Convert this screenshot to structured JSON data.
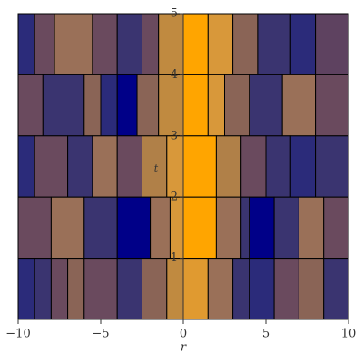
{
  "chart_data": {
    "type": "contour",
    "x_label": "r",
    "y_label": "t",
    "xlim": [
      -10,
      10
    ],
    "ylim": [
      0,
      5
    ],
    "xticks": [
      {
        "value": -10,
        "label": "−10"
      },
      {
        "value": -5,
        "label": "−5"
      },
      0,
      5,
      10
    ],
    "yticks": [
      1,
      2,
      3,
      4,
      5
    ],
    "bands": [
      {
        "t": [
          4,
          5
        ],
        "cells": [
          [
            -10,
            -9,
            "#2b2b7a"
          ],
          [
            -9,
            -7.8,
            "#6a4a5e"
          ],
          [
            -7.8,
            -5.5,
            "#9a7058"
          ],
          [
            -5.5,
            -4,
            "#6a4a5e"
          ],
          [
            -4,
            -2.5,
            "#3a3470"
          ],
          [
            -2.5,
            -1.5,
            "#6a4a5e"
          ],
          [
            -1.5,
            0,
            "#c08a40"
          ],
          [
            0,
            1.5,
            "#ffa500"
          ],
          [
            1.5,
            3,
            "#d8983a"
          ],
          [
            3,
            4.5,
            "#8a6456"
          ],
          [
            4.5,
            6.5,
            "#3a3470"
          ],
          [
            6.5,
            8,
            "#2b2b7a"
          ],
          [
            8,
            10,
            "#5e4260"
          ]
        ]
      },
      {
        "t": [
          3,
          4
        ],
        "cells": [
          [
            -10,
            -8.5,
            "#6a4a5e"
          ],
          [
            -8.5,
            -6,
            "#3a3470"
          ],
          [
            -6,
            -5,
            "#8a6456"
          ],
          [
            -5,
            -4,
            "#2b2b7a"
          ],
          [
            -4,
            -2.8,
            "#000088"
          ],
          [
            -2.8,
            -1.5,
            "#8a6456"
          ],
          [
            -1.5,
            0,
            "#c08a40"
          ],
          [
            0,
            1.5,
            "#ffa500"
          ],
          [
            1.5,
            2.5,
            "#d8983a"
          ],
          [
            2.5,
            4,
            "#8a6456"
          ],
          [
            4,
            6,
            "#3a3470"
          ],
          [
            6,
            8,
            "#9a7058"
          ],
          [
            8,
            10,
            "#6a4a5e"
          ]
        ]
      },
      {
        "t": [
          2,
          3
        ],
        "cells": [
          [
            -10,
            -9,
            "#2b2b7a"
          ],
          [
            -9,
            -7,
            "#6a4a5e"
          ],
          [
            -7,
            -5.5,
            "#3a3470"
          ],
          [
            -5.5,
            -4,
            "#9a7058"
          ],
          [
            -4,
            -2.5,
            "#6a4a5e"
          ],
          [
            -2.5,
            -1,
            "#b08048"
          ],
          [
            -1,
            0,
            "#d8983a"
          ],
          [
            0,
            2,
            "#ffa500"
          ],
          [
            2,
            3.5,
            "#b08048"
          ],
          [
            3.5,
            5,
            "#6a4a5e"
          ],
          [
            5,
            6.5,
            "#3a3470"
          ],
          [
            6.5,
            8,
            "#2b2b7a"
          ],
          [
            8,
            10,
            "#3a3470"
          ]
        ]
      },
      {
        "t": [
          1,
          2
        ],
        "cells": [
          [
            -10,
            -8,
            "#6a4a5e"
          ],
          [
            -8,
            -6,
            "#9a7058"
          ],
          [
            -6,
            -4,
            "#3a3470"
          ],
          [
            -4,
            -2,
            "#000088"
          ],
          [
            -2,
            -0.8,
            "#9a7058"
          ],
          [
            -0.8,
            0,
            "#d8983a"
          ],
          [
            0,
            2,
            "#ffa500"
          ],
          [
            2,
            3.5,
            "#9a7058"
          ],
          [
            3.5,
            4,
            "#3a3470"
          ],
          [
            4,
            5.5,
            "#000088"
          ],
          [
            5.5,
            7,
            "#3a3470"
          ],
          [
            7,
            8.5,
            "#9a7058"
          ],
          [
            8.5,
            10,
            "#6a4a5e"
          ]
        ]
      },
      {
        "t": [
          0,
          1
        ],
        "cells": [
          [
            -10,
            -9,
            "#2b2b7a"
          ],
          [
            -9,
            -8,
            "#3a3470"
          ],
          [
            -8,
            -7,
            "#6a4a5e"
          ],
          [
            -7,
            -6,
            "#8a6456"
          ],
          [
            -6,
            -4,
            "#6a4a5e"
          ],
          [
            -4,
            -2.5,
            "#3a3470"
          ],
          [
            -2.5,
            -1,
            "#8a6456"
          ],
          [
            -1,
            0,
            "#c08a40"
          ],
          [
            0,
            1.5,
            "#e09a30"
          ],
          [
            1.5,
            3,
            "#9a7058"
          ],
          [
            3,
            4,
            "#3a3470"
          ],
          [
            4,
            5.5,
            "#2b2b7a"
          ],
          [
            5.5,
            7,
            "#6a4a5e"
          ],
          [
            7,
            8.5,
            "#8a6456"
          ],
          [
            8.5,
            10,
            "#3a3470"
          ]
        ]
      }
    ]
  }
}
